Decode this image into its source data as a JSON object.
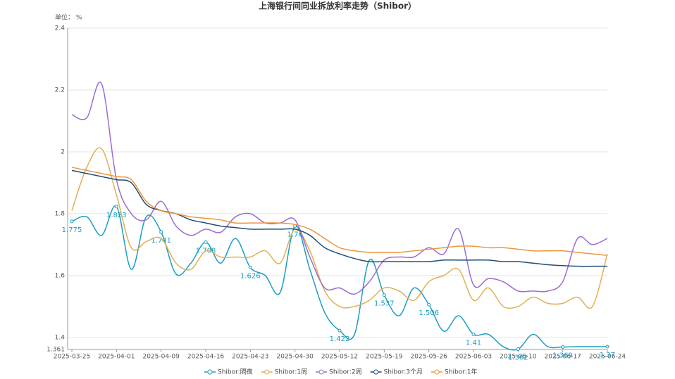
{
  "chart_data": {
    "type": "line",
    "title": "上海银行间同业拆放利率走势（Shibor）",
    "y_label": "单位： %",
    "categories": [
      "2025-03-25",
      null,
      null,
      "2025-04-01",
      null,
      null,
      "2025-04-09",
      null,
      null,
      "2025-04-16",
      null,
      null,
      "2025-04-23",
      null,
      null,
      "2025-04-30",
      null,
      null,
      "2025-05-12",
      null,
      null,
      "2025-05-19",
      null,
      null,
      "2025-05-26",
      null,
      null,
      "2025-06-03",
      null,
      null,
      "2025-06-10",
      null,
      null,
      "2025-06-17",
      null,
      null,
      "2025-06-24"
    ],
    "ylim": [
      1.361,
      2.4
    ],
    "yticks": [
      1.361,
      1.4,
      1.6,
      1.8,
      2,
      2.2,
      2.4
    ],
    "grid": true,
    "series": [
      {
        "name": "Shibor:隔夜",
        "color": "#1b9dc4",
        "values": [
          1.775,
          1.79,
          1.73,
          1.823,
          1.62,
          1.79,
          1.741,
          1.605,
          1.64,
          1.708,
          1.64,
          1.72,
          1.626,
          1.6,
          1.545,
          1.76,
          1.62,
          1.48,
          1.422,
          1.41,
          1.65,
          1.537,
          1.47,
          1.56,
          1.506,
          1.42,
          1.47,
          1.41,
          1.41,
          1.37,
          1.362,
          1.41,
          1.37,
          1.369,
          1.37,
          1.37,
          1.37
        ],
        "value_labels": [
          "1.775",
          null,
          null,
          "1.823",
          null,
          null,
          "1.741",
          null,
          null,
          "1.708",
          null,
          null,
          "1.626",
          null,
          null,
          "1.76",
          null,
          null,
          "1.422",
          null,
          null,
          "1.537",
          null,
          null,
          "1.506",
          null,
          null,
          "1.41",
          null,
          null,
          "1.362",
          null,
          null,
          "1.369",
          null,
          null,
          "1.37"
        ]
      },
      {
        "name": "Shibor:1周",
        "color": "#e2b04f",
        "values": [
          1.81,
          1.95,
          2.01,
          1.86,
          1.69,
          1.71,
          1.72,
          1.64,
          1.62,
          1.68,
          1.66,
          1.66,
          1.66,
          1.68,
          1.64,
          1.75,
          1.68,
          1.55,
          1.5,
          1.5,
          1.52,
          1.56,
          1.55,
          1.52,
          1.58,
          1.6,
          1.62,
          1.52,
          1.56,
          1.5,
          1.5,
          1.53,
          1.51,
          1.51,
          1.53,
          1.5,
          1.67
        ]
      },
      {
        "name": "Shibor:2周",
        "color": "#9b6bd6",
        "values": [
          2.12,
          2.11,
          2.22,
          1.91,
          1.8,
          1.78,
          1.84,
          1.76,
          1.73,
          1.75,
          1.74,
          1.79,
          1.8,
          1.77,
          1.77,
          1.78,
          1.66,
          1.56,
          1.56,
          1.54,
          1.58,
          1.65,
          1.66,
          1.66,
          1.69,
          1.67,
          1.75,
          1.57,
          1.59,
          1.58,
          1.55,
          1.55,
          1.55,
          1.58,
          1.72,
          1.7,
          1.72
        ]
      },
      {
        "name": "Shibor:3个月",
        "color": "#1f4e79",
        "values": [
          1.94,
          1.93,
          1.92,
          1.91,
          1.9,
          1.83,
          1.81,
          1.8,
          1.78,
          1.77,
          1.76,
          1.755,
          1.75,
          1.75,
          1.75,
          1.75,
          1.73,
          1.69,
          1.67,
          1.655,
          1.645,
          1.645,
          1.645,
          1.645,
          1.645,
          1.65,
          1.65,
          1.65,
          1.65,
          1.645,
          1.645,
          1.64,
          1.635,
          1.632,
          1.63,
          1.63,
          1.63
        ]
      },
      {
        "name": "Shibor:1年",
        "color": "#f0953a",
        "values": [
          1.95,
          1.94,
          1.93,
          1.92,
          1.91,
          1.84,
          1.81,
          1.8,
          1.79,
          1.785,
          1.78,
          1.77,
          1.77,
          1.77,
          1.77,
          1.765,
          1.75,
          1.72,
          1.69,
          1.68,
          1.675,
          1.675,
          1.675,
          1.68,
          1.685,
          1.69,
          1.695,
          1.695,
          1.69,
          1.69,
          1.685,
          1.68,
          1.68,
          1.68,
          1.675,
          1.67,
          1.665
        ]
      }
    ]
  }
}
